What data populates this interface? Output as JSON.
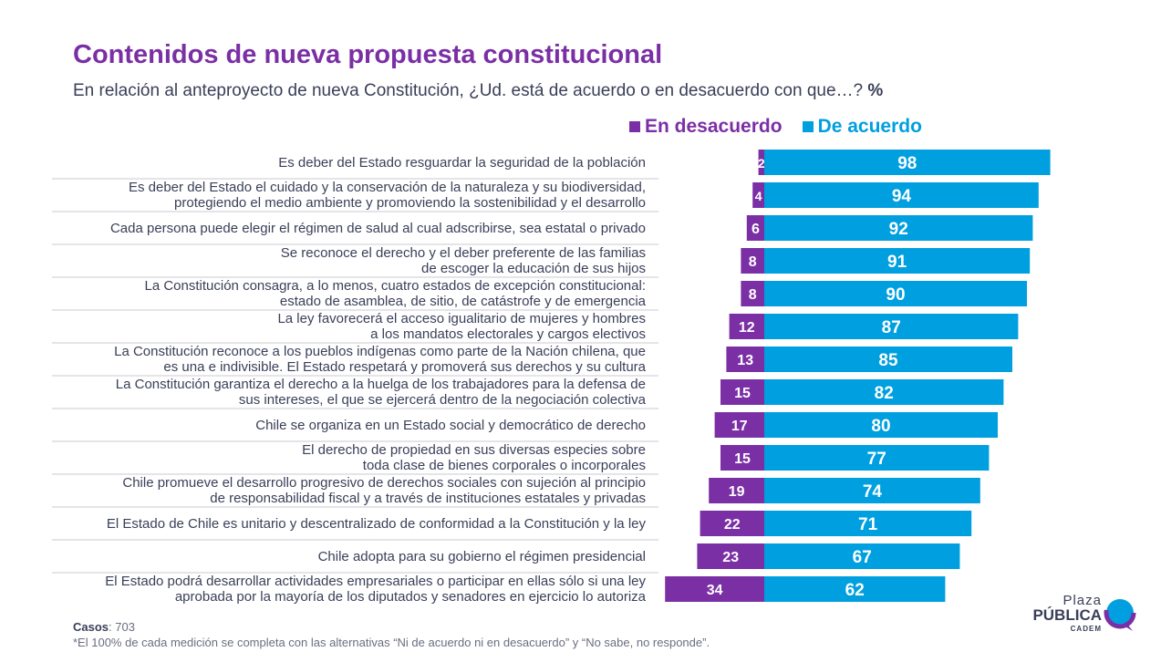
{
  "title": "Contenidos de nueva propuesta constitucional",
  "subtitle": "En relación al anteproyecto de nueva Constitución, ¿Ud. está de acuerdo o en desacuerdo con que…?",
  "subtitle_unit": "%",
  "colors": {
    "desacuerdo": "#7b2fa5",
    "acuerdo": "#009fdf",
    "title": "#7b2fa5"
  },
  "footer": {
    "casos_label": "Casos",
    "casos_value": ": 703",
    "note": "*El 100% de cada medición se completa con las alternativas “Ni de acuerdo ni en desacuerdo” y “No sabe, no responde”."
  },
  "logo": {
    "line1": "Plaza",
    "line2": "PÚBLICA",
    "line3": "CADEM"
  },
  "chart_data": {
    "type": "bar",
    "orientation": "horizontal-diverging",
    "series": [
      {
        "name": "En desacuerdo",
        "values": [
          2,
          4,
          6,
          8,
          8,
          12,
          13,
          15,
          17,
          15,
          19,
          22,
          23,
          34
        ]
      },
      {
        "name": "De acuerdo",
        "values": [
          98,
          94,
          92,
          91,
          90,
          87,
          85,
          82,
          80,
          77,
          74,
          71,
          67,
          62
        ]
      }
    ],
    "categories": [
      [
        "Es deber del Estado resguardar la seguridad de la población"
      ],
      [
        "Es deber del Estado el cuidado y la conservación de la naturaleza y su biodiversidad,",
        "protegiendo el medio ambiente y promoviendo la sostenibilidad y el desarrollo"
      ],
      [
        "Cada persona puede elegir el régimen de salud al cual adscribirse, sea estatal o privado"
      ],
      [
        "Se reconoce el derecho y el deber preferente de las familias",
        "de escoger la educación de sus hijos"
      ],
      [
        "La Constitución consagra, a lo menos, cuatro estados de excepción constitucional:",
        "estado de asamblea, de sitio, de catástrofe y de emergencia"
      ],
      [
        "La ley favorecerá el acceso igualitario de mujeres y hombres",
        "a los mandatos electorales y cargos electivos"
      ],
      [
        "La Constitución reconoce a los pueblos indígenas como parte de la Nación chilena, que",
        "es una e indivisible. El Estado respetará y promoverá sus derechos y su cultura"
      ],
      [
        "La Constitución garantiza el derecho a la huelga de los trabajadores para la defensa de",
        "sus intereses, el que se ejercerá dentro de la negociación colectiva"
      ],
      [
        "Chile se organiza en un Estado social y democrático de derecho"
      ],
      [
        "El derecho de propiedad en sus diversas especies sobre",
        "toda clase de bienes corporales o incorporales"
      ],
      [
        "Chile promueve el desarrollo progresivo de derechos sociales con sujeción al principio",
        "de responsabilidad fiscal y a través de instituciones estatales y privadas"
      ],
      [
        "El Estado de Chile es unitario y descentralizado de conformidad a la Constitución y la ley"
      ],
      [
        "Chile adopta para su gobierno el régimen presidencial"
      ],
      [
        "El Estado podrá desarrollar actividades empresariales o participar en ellas sólo si una ley",
        "aprobada por la mayoría de los diputados y senadores en ejercicio lo autoriza"
      ]
    ],
    "legend_position": "top-right"
  }
}
